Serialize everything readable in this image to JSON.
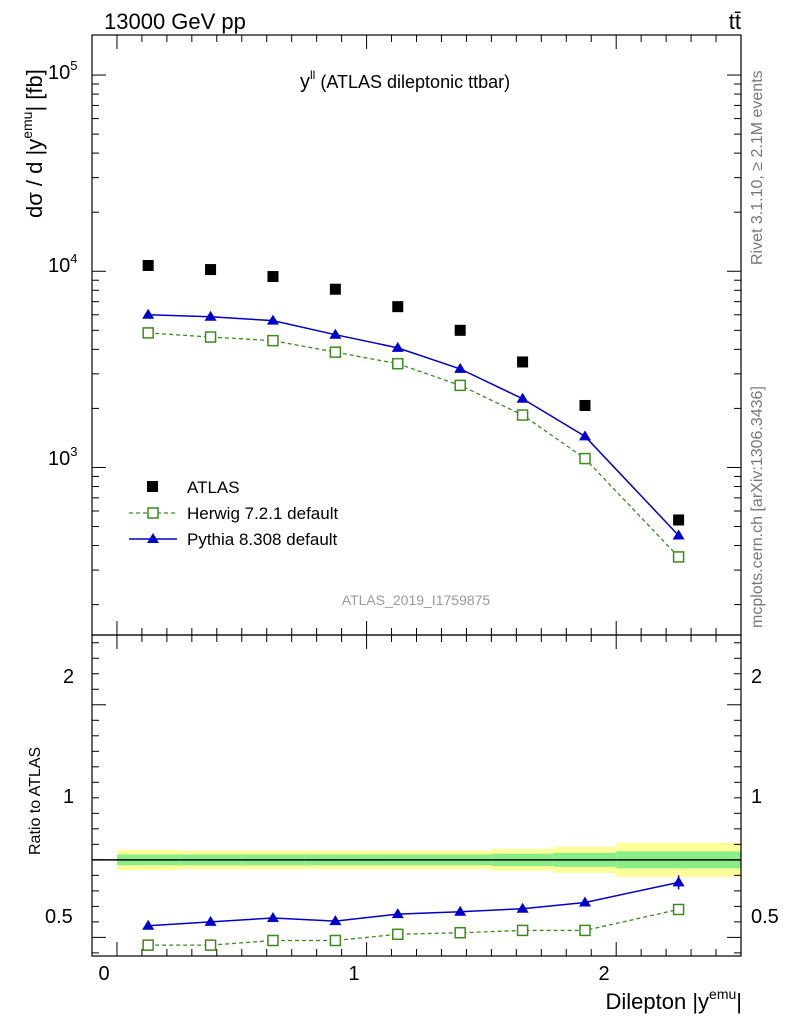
{
  "header": {
    "energy_label": "13000 GeV pp",
    "process_label": "tt̄"
  },
  "side_labels": {
    "rivet": "Rivet 3.1.10, ≥ 2.1M events",
    "mcplots": "mcplots.cern.ch [arXiv:1306.3436]"
  },
  "main_panel": {
    "title_main": "y",
    "title_sup": "ll",
    "title_rest": " (ATLAS dileptonic ttbar)",
    "ylabel_main": "dσ / d |y",
    "ylabel_sup": "emu",
    "ylabel_end": "| [fb]",
    "analysis_id": "ATLAS_2019_I1759875",
    "y_ticks": [
      {
        "base": "10",
        "exp": "5",
        "value": 100000
      },
      {
        "base": "10",
        "exp": "4",
        "value": 10000
      },
      {
        "base": "10",
        "exp": "3",
        "value": 1000
      }
    ]
  },
  "ratio_panel": {
    "ylabel": "Ratio to ATLAS",
    "y_ticks": [
      "0.5",
      "1",
      "2"
    ]
  },
  "x_axis": {
    "label_main": "Dilepton |y",
    "label_sup": "emu",
    "label_end": "|",
    "ticks": [
      "0",
      "1",
      "2"
    ]
  },
  "legend": [
    {
      "name": "ATLAS",
      "color": "#000000",
      "style": "square-filled"
    },
    {
      "name": "Herwig 7.2.1 default",
      "color": "#3a8c1a",
      "style": "square-open-dashed"
    },
    {
      "name": "Pythia 8.308 default",
      "color": "#0000cc",
      "style": "triangle-solid"
    }
  ],
  "chart_data": {
    "type": "scatter",
    "log_y": true,
    "x_range": [
      -0.1,
      2.5
    ],
    "y_range": [
      140,
      160000
    ],
    "x": [
      0.125,
      0.375,
      0.625,
      0.875,
      1.125,
      1.375,
      1.625,
      1.875,
      2.25
    ],
    "x_bin_edges": [
      0,
      0.25,
      0.5,
      0.75,
      1.0,
      1.25,
      1.5,
      1.75,
      2.0,
      2.5
    ],
    "series": [
      {
        "name": "ATLAS",
        "values": [
          10700,
          10200,
          9400,
          8100,
          6600,
          5000,
          3450,
          2070,
          540
        ]
      },
      {
        "name": "Herwig 7.2.1 default",
        "values": [
          4850,
          4620,
          4430,
          3870,
          3380,
          2620,
          1850,
          1110,
          350
        ]
      },
      {
        "name": "Pythia 8.308 default",
        "values": [
          6000,
          5860,
          5600,
          4750,
          4070,
          3180,
          2240,
          1440,
          450
        ]
      }
    ],
    "ratio": {
      "y_range": [
        0.38,
        2.45
      ],
      "series": [
        {
          "name": "Herwig 7.2.1 default",
          "values": [
            0.45,
            0.45,
            0.48,
            0.48,
            0.52,
            0.53,
            0.545,
            0.545,
            0.68
          ]
        },
        {
          "name": "Pythia 8.308 default",
          "values": [
            0.575,
            0.6,
            0.625,
            0.605,
            0.65,
            0.665,
            0.685,
            0.725,
            0.855
          ]
        }
      ],
      "uncertainty_bands": {
        "inner_half_width": [
          0.035,
          0.035,
          0.035,
          0.035,
          0.035,
          0.035,
          0.04,
          0.045,
          0.055
        ],
        "outer_half_width": [
          0.065,
          0.06,
          0.06,
          0.06,
          0.06,
          0.06,
          0.07,
          0.085,
          0.11
        ]
      }
    }
  }
}
